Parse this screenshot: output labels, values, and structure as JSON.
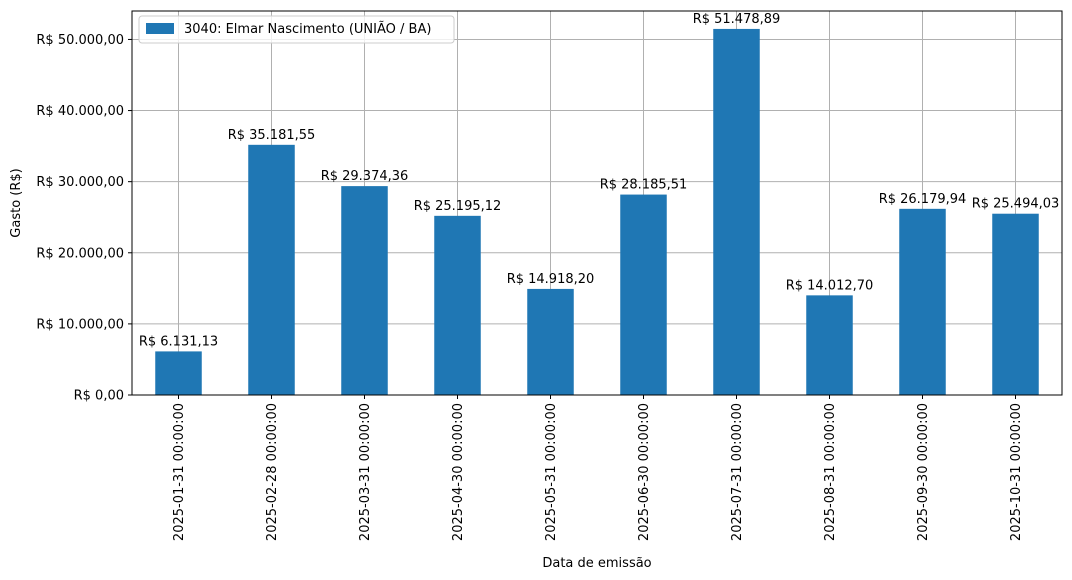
{
  "chart_data": {
    "type": "bar",
    "xlabel": "Data de emissão",
    "ylabel": "Gasto (R$)",
    "ylim": [
      0,
      54000
    ],
    "yticks": [
      0,
      10000,
      20000,
      30000,
      40000,
      50000
    ],
    "ytick_labels": [
      "R$ 0,00",
      "R$ 10.000,00",
      "R$ 20.000,00",
      "R$ 30.000,00",
      "R$ 40.000,00",
      "R$ 50.000,00"
    ],
    "grid": true,
    "legend_position": "top-left",
    "bar_color": "#1f77b4",
    "categories": [
      "2025-01-31 00:00:00",
      "2025-02-28 00:00:00",
      "2025-03-31 00:00:00",
      "2025-04-30 00:00:00",
      "2025-05-31 00:00:00",
      "2025-06-30 00:00:00",
      "2025-07-31 00:00:00",
      "2025-08-31 00:00:00",
      "2025-09-30 00:00:00",
      "2025-10-31 00:00:00"
    ],
    "series": [
      {
        "name": "3040: Elmar Nascimento (UNIÃO / BA)",
        "values": [
          6131.13,
          35181.55,
          29374.36,
          25195.12,
          14918.2,
          28185.51,
          51478.89,
          14012.7,
          26179.94,
          25494.03
        ],
        "labels": [
          "R$ 6.131,13",
          "R$ 35.181,55",
          "R$ 29.374,36",
          "R$ 25.195,12",
          "R$ 14.918,20",
          "R$ 28.185,51",
          "R$ 51.478,89",
          "R$ 14.012,70",
          "R$ 26.179,94",
          "R$ 25.494,03"
        ]
      }
    ]
  }
}
